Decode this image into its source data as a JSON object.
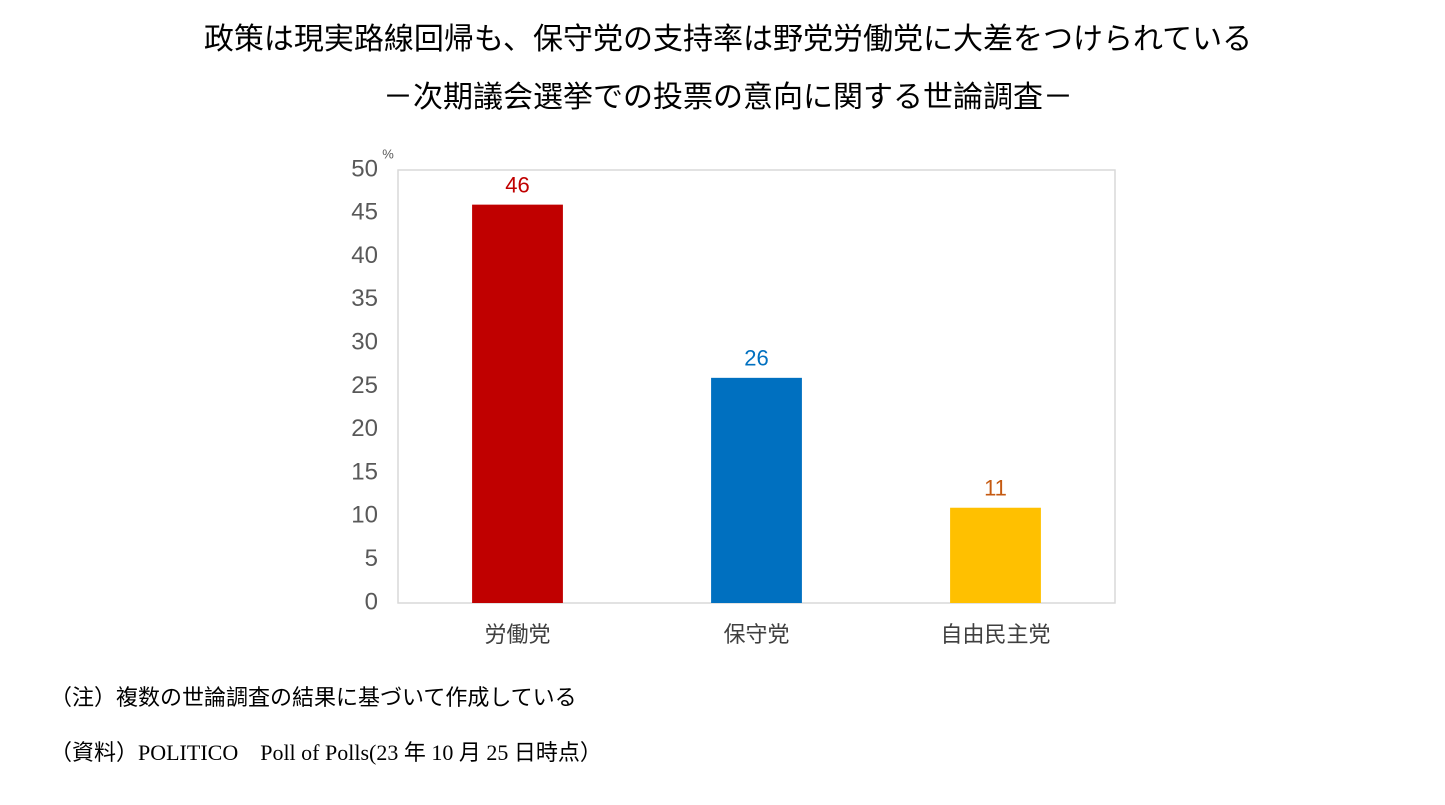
{
  "chart_data": {
    "type": "bar",
    "title": "政策は現実路線回帰も、保守党の支持率は野党労働党に大差をつけられている",
    "subtitle": "－次期議会選挙での投票の意向に関する世論調査－",
    "y_unit": "%",
    "categories": [
      "労働党",
      "保守党",
      "自由民主党"
    ],
    "values": [
      46,
      26,
      11
    ],
    "colors": [
      "#c00000",
      "#0070c0",
      "#ffc000"
    ],
    "label_colors": [
      "#c00000",
      "#0070c0",
      "#c55a11"
    ],
    "ylim": [
      0,
      50
    ],
    "yticks": [
      0,
      5,
      10,
      15,
      20,
      25,
      30,
      35,
      40,
      45,
      50
    ],
    "grid": false,
    "notes": [
      "（注）複数の世論調査の結果に基づいて作成している",
      "（資料）POLITICO　Poll of Polls(23 年 10 月 25 日時点）"
    ]
  }
}
